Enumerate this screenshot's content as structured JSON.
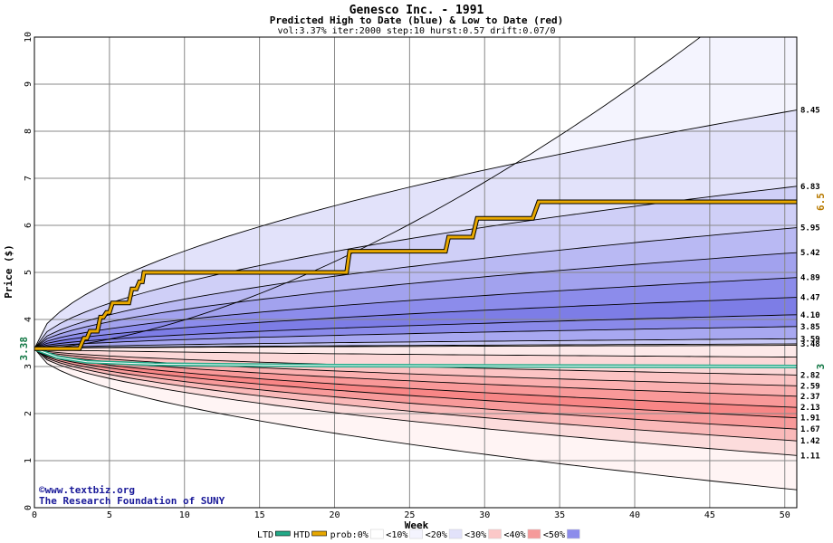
{
  "chart_data": {
    "type": "area",
    "title": "Genesco Inc. - 1991",
    "subtitle": "Predicted High to Date (blue) &  Low to Date (red)",
    "params": "vol:3.37% iter:2000 step:10 hurst:0.57 drift:0.07/0",
    "xlabel": "Week",
    "ylabel": "Price ($)",
    "xlim": [
      0,
      50.8
    ],
    "ylim": [
      0,
      10
    ],
    "xticks": [
      "0",
      "5",
      "10",
      "15",
      "20",
      "25",
      "30",
      "35",
      "40",
      "45",
      "50"
    ],
    "yticks": [
      "0",
      "1",
      "2",
      "3",
      "4",
      "5",
      "6",
      "7",
      "8",
      "9",
      "10"
    ],
    "grid": true,
    "start_price": 3.38,
    "start_label": "3.38",
    "high_curves": [
      {
        "label": "",
        "end": 11.6,
        "k": 1.6
      },
      {
        "label": "8.45",
        "end": 8.45
      },
      {
        "label": "6.83",
        "end": 6.83
      },
      {
        "label": "5.95",
        "end": 5.95
      },
      {
        "label": "5.42",
        "end": 5.42
      },
      {
        "label": "4.89",
        "end": 4.89
      },
      {
        "label": "4.47",
        "end": 4.47
      },
      {
        "label": "4.10",
        "end": 4.1
      },
      {
        "label": "3.85",
        "end": 3.85
      },
      {
        "label": "3.59",
        "end": 3.59
      },
      {
        "label": "",
        "end": 3.45
      }
    ],
    "low_curves": [
      {
        "label": "3.48",
        "end": 3.48
      },
      {
        "label": "",
        "end": 3.2
      },
      {
        "label": "2.82",
        "end": 2.82
      },
      {
        "label": "2.59",
        "end": 2.59
      },
      {
        "label": "2.37",
        "end": 2.37
      },
      {
        "label": "2.13",
        "end": 2.13
      },
      {
        "label": "1.91",
        "end": 1.91
      },
      {
        "label": "1.67",
        "end": 1.67
      },
      {
        "label": "1.42",
        "end": 1.42
      },
      {
        "label": "1.11",
        "end": 1.11
      },
      {
        "label": "",
        "end": 0.38
      }
    ],
    "blue_fills": [
      "#f4f4fe",
      "#e2e2fa",
      "#cfcff7",
      "#b9b9f3",
      "#a2a2ee",
      "#8c8ceb",
      "#7d7de6",
      "#8a8aea",
      "#a8a8f1",
      "#c9c9f7"
    ],
    "red_fills": [
      "#fde9e9",
      "#fcd8d8",
      "#fcc4c4",
      "#fbb0b0",
      "#f99999",
      "#f88686",
      "#f89a9a",
      "#fab9b9",
      "#fcdcdc",
      "#fff4f4"
    ],
    "htd_series": {
      "name": "HTD",
      "color": "#e8a800",
      "points": [
        [
          0,
          3.38
        ],
        [
          3,
          3.38
        ],
        [
          3.3,
          3.6
        ],
        [
          3.5,
          3.6
        ],
        [
          3.7,
          3.75
        ],
        [
          4.2,
          3.75
        ],
        [
          4.4,
          4.05
        ],
        [
          4.6,
          4.05
        ],
        [
          4.8,
          4.15
        ],
        [
          5,
          4.15
        ],
        [
          5.2,
          4.35
        ],
        [
          6.3,
          4.35
        ],
        [
          6.5,
          4.65
        ],
        [
          6.8,
          4.65
        ],
        [
          7,
          4.8
        ],
        [
          7.2,
          4.8
        ],
        [
          7.3,
          5.0
        ],
        [
          20.8,
          5.0
        ],
        [
          21.0,
          5.45
        ],
        [
          27.4,
          5.45
        ],
        [
          27.6,
          5.75
        ],
        [
          29.2,
          5.75
        ],
        [
          29.5,
          6.15
        ],
        [
          33.2,
          6.15
        ],
        [
          33.6,
          6.5
        ],
        [
          50.8,
          6.5
        ]
      ],
      "end_label": "6.5"
    },
    "ltd_series": {
      "name": "LTD",
      "color": "#22aa88",
      "points": [
        [
          0,
          3.38
        ],
        [
          1.5,
          3.2
        ],
        [
          3.5,
          3.1
        ],
        [
          8,
          3.05
        ],
        [
          20,
          3.02
        ],
        [
          50.8,
          3.0
        ]
      ],
      "end_label": "3"
    },
    "legend": {
      "position": "bottom",
      "items": [
        {
          "label": "LTD",
          "color": "#22aa88",
          "kind": "line"
        },
        {
          "label": "HTD",
          "color": "#e8a800",
          "kind": "line"
        },
        {
          "label": "prob:0%",
          "color": "#ffffff",
          "kind": "swatch"
        },
        {
          "label": "<10%",
          "color": "#f4f4fe",
          "kind": "swatch"
        },
        {
          "label": "<20%",
          "color": "#e2e2fa",
          "kind": "swatch"
        },
        {
          "label": "<30%",
          "color": "#fbc8c8",
          "kind": "swatch"
        },
        {
          "label": "<40%",
          "color": "#f59a9a",
          "kind": "swatch"
        },
        {
          "label": "<50%",
          "color": "#8c8ceb",
          "kind": "swatch"
        }
      ]
    },
    "watermark": [
      "©www.textbiz.org",
      "The Research Foundation of SUNY"
    ]
  }
}
